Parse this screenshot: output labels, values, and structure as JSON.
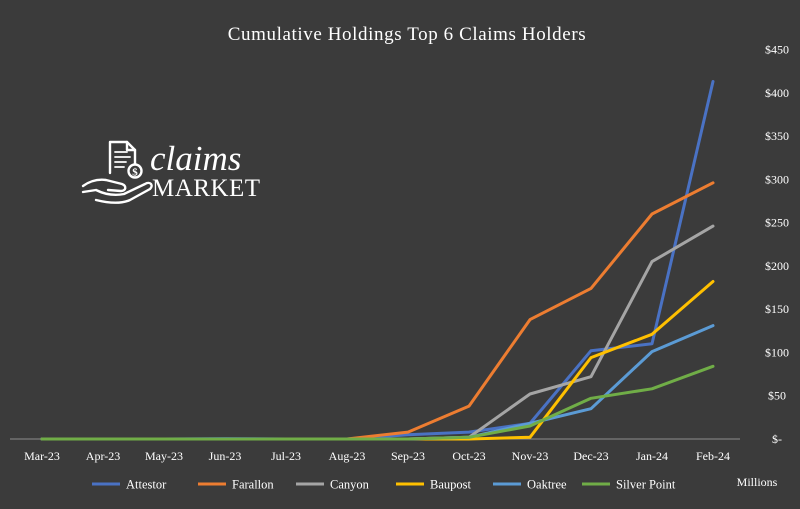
{
  "logo": {
    "text_top": "claims",
    "text_bottom": "MARKET",
    "icon": "hand-document-dollar-icon"
  },
  "chart_data": {
    "type": "line",
    "title": "Cumulative Holdings Top 6 Claims Holders",
    "xlabel": "",
    "ylabel": "",
    "unit_label": "Millions",
    "categories": [
      "Mar-23",
      "Apr-23",
      "May-23",
      "Jun-23",
      "Jul-23",
      "Aug-23",
      "Sep-23",
      "Oct-23",
      "Nov-23",
      "Dec-23",
      "Jan-24",
      "Feb-24"
    ],
    "ylim": [
      0,
      450
    ],
    "y_ticks": [
      0,
      50,
      100,
      150,
      200,
      250,
      300,
      350,
      400,
      450
    ],
    "y_tick_labels": [
      "$-",
      "$50",
      "$100",
      "$150",
      "$200",
      "$250",
      "$300",
      "$350",
      "$400",
      "$450"
    ],
    "y_axis_position": "right",
    "grid": false,
    "legend_position": "bottom",
    "series": [
      {
        "name": "Attestor",
        "color": "#4a72c4",
        "values": [
          0,
          0,
          0,
          0.5,
          0,
          0,
          5,
          8,
          18,
          102,
          110,
          413
        ]
      },
      {
        "name": "Farallon",
        "color": "#ed7d31",
        "values": [
          0,
          0,
          0,
          0,
          0,
          0,
          8,
          38,
          138,
          174,
          260,
          296
        ]
      },
      {
        "name": "Canyon",
        "color": "#a5a5a5",
        "values": [
          0,
          0,
          0,
          0,
          0,
          0,
          0,
          2,
          52,
          72,
          205,
          246
        ]
      },
      {
        "name": "Baupost",
        "color": "#ffc000",
        "values": [
          0,
          0,
          0,
          0,
          0,
          0,
          0,
          0,
          2,
          94,
          121,
          182
        ]
      },
      {
        "name": "Oaktree",
        "color": "#5b9bd5",
        "values": [
          0,
          0,
          0,
          0,
          0,
          0,
          0,
          2,
          18,
          35,
          101,
          131
        ]
      },
      {
        "name": "Silver Point",
        "color": "#70ad47",
        "values": [
          0,
          0,
          0,
          0,
          0,
          0,
          0,
          2,
          15,
          47,
          58,
          84
        ]
      }
    ]
  }
}
